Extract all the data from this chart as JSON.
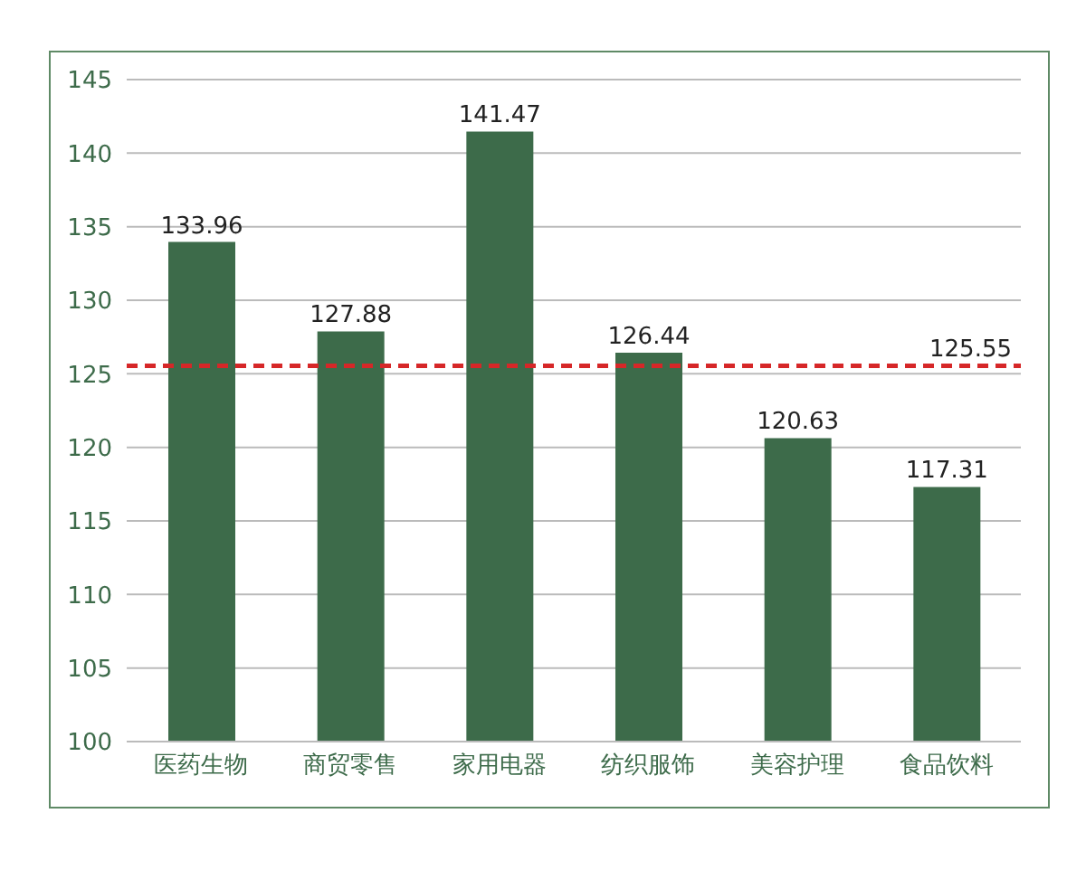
{
  "chart_data": {
    "type": "bar",
    "categories": [
      "医药生物",
      "商贸零售",
      "家用电器",
      "纺织服饰",
      "美容护理",
      "食品饮料"
    ],
    "values": [
      133.96,
      127.88,
      141.47,
      126.44,
      120.63,
      117.31
    ],
    "color": "#3d6b4a",
    "ylim": [
      100,
      145
    ],
    "yticks": [
      100,
      105,
      110,
      115,
      120,
      125,
      130,
      135,
      140,
      145
    ],
    "grid": "y",
    "data_labels": true,
    "ref_lines": [
      {
        "axis": "y",
        "value": 125.55,
        "label": "125.55",
        "color": "#d62728",
        "line_style": "dashed"
      }
    ]
  }
}
